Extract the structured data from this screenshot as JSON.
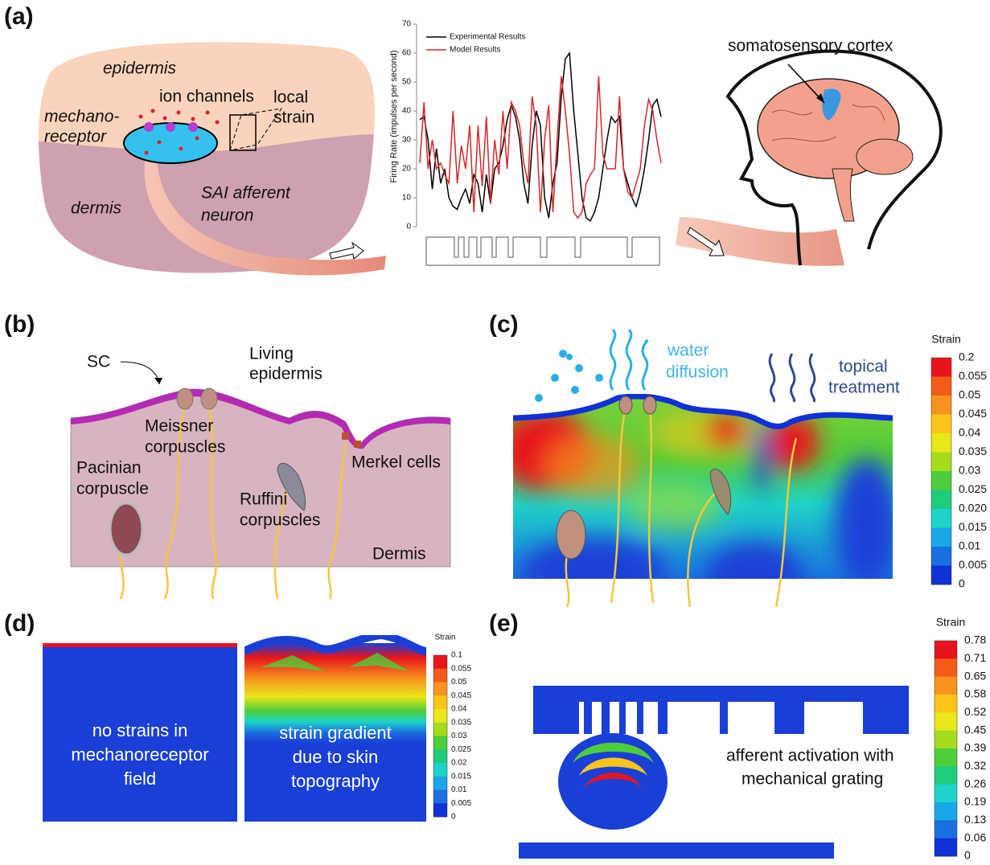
{
  "labels": [
    "(a)",
    "(b)",
    "(c)",
    "(d)",
    "(e)"
  ],
  "panel_a": {
    "epidermis": "epidermis",
    "ion_channels": "ion channels",
    "local_strain": [
      "local",
      "strain"
    ],
    "mechanoreceptor": [
      "mechano-",
      "receptor"
    ],
    "dermis": "dermis",
    "sai_afferent_neuron": [
      "SAI afferent",
      "neuron"
    ],
    "somatosensory_cortex": "somatosensory cortex"
  },
  "chart_data": {
    "type": "line",
    "y_label": "Firing Rate (impulses per second)",
    "ylim": [
      0,
      70
    ],
    "yticks": [
      0,
      10,
      20,
      30,
      40,
      50,
      60,
      70
    ],
    "series": [
      {
        "name": "Experimental Results",
        "color": "#000000",
        "values": [
          37,
          38,
          30,
          13,
          27,
          15,
          20,
          10,
          7,
          6,
          10,
          13,
          8,
          18,
          15,
          5,
          18,
          8,
          20,
          22,
          28,
          37,
          42,
          38,
          30,
          15,
          8,
          28,
          40,
          35,
          10,
          3,
          15,
          22,
          45,
          58,
          60,
          40,
          25,
          10,
          3,
          2,
          5,
          10,
          20,
          30,
          38,
          36,
          38,
          20,
          15,
          10,
          7,
          12,
          20,
          30,
          42,
          44,
          38
        ]
      },
      {
        "name": "Model Results",
        "color": "#d62728",
        "values": [
          22,
          43,
          20,
          30,
          20,
          22,
          18,
          15,
          40,
          15,
          28,
          20,
          35,
          5,
          35,
          14,
          38,
          8,
          30,
          18,
          40,
          20,
          43,
          40,
          35,
          22,
          15,
          45,
          35,
          5,
          30,
          42,
          5,
          30,
          52,
          40,
          25,
          5,
          3,
          5,
          15,
          18,
          20,
          52,
          25,
          20,
          20,
          20,
          45,
          20,
          12,
          10,
          15,
          20,
          35,
          44,
          40,
          30,
          22
        ]
      }
    ]
  },
  "panel_b": {
    "sc": "SC",
    "living_epidermis": [
      "Living",
      "epidermis"
    ],
    "meissner_corpuscles": [
      "Meissner",
      "corpuscles"
    ],
    "pacinian_corpuscle": [
      "Pacinian",
      "corpuscle"
    ],
    "ruffini_corpuscles": [
      "Ruffini",
      "corpuscles"
    ],
    "merkel_cells": "Merkel cells",
    "dermis": "Dermis"
  },
  "panel_c": {
    "water_diffusion": [
      "water",
      "diffusion"
    ],
    "topical_treatment": [
      "topical",
      "treatment"
    ],
    "colorbar": {
      "title": "Strain",
      "labels": [
        "0.2",
        "0.055",
        "0.05",
        "0.045",
        "0.04",
        "0.035",
        "0.03",
        "0.025",
        "0.020",
        "0.015",
        "0.01",
        "0.005",
        "0"
      ]
    }
  },
  "panel_d": {
    "left_text": [
      "no strains in",
      "mechanoreceptor",
      "field"
    ],
    "right_text": [
      "strain gradient",
      "due to skin",
      "topography"
    ],
    "colorbar": {
      "title": "Strain",
      "labels": [
        "0.1",
        "0.055",
        "0.05",
        "0.045",
        "0.04",
        "0.035",
        "0.03",
        "0.025",
        "0.02",
        "0.015",
        "0.01",
        "0.005",
        "0"
      ]
    }
  },
  "panel_e": {
    "text": [
      "afferent activation with",
      "mechanical grating"
    ],
    "colorbar": {
      "title": "Strain",
      "labels": [
        "0.78",
        "0.71",
        "0.65",
        "0.58",
        "0.52",
        "0.45",
        "0.39",
        "0.32",
        "0.26",
        "0.19",
        "0.13",
        "0.06",
        "0"
      ]
    }
  }
}
